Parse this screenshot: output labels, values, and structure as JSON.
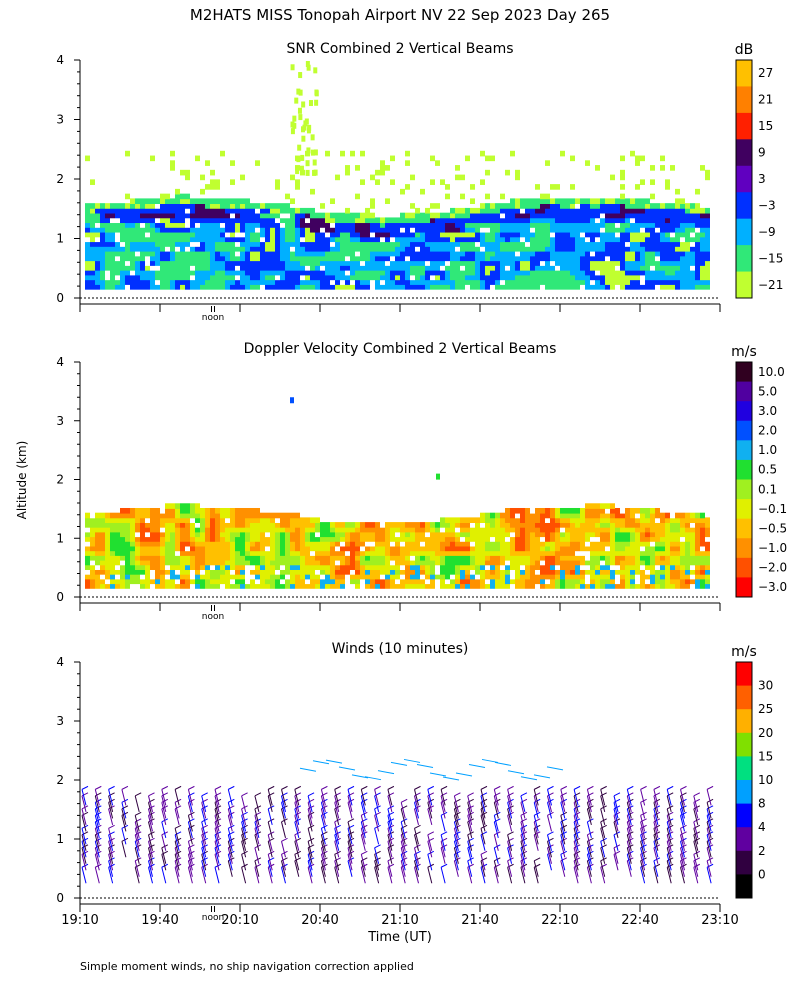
{
  "page_title": "M2HATS MISS Tonopah Airport NV  22 Sep 2023 Day 265",
  "y_label": "Altitude (km)",
  "x_label": "Time (UT)",
  "footnote": "Simple moment winds, no ship navigation correction applied",
  "noon_label": "noon",
  "x_ticks": [
    "19:10",
    "19:40",
    "20:10",
    "20:40",
    "21:10",
    "21:40",
    "22:10",
    "22:40",
    "23:10"
  ],
  "chart_data": [
    {
      "type": "heatmap",
      "title": "SNR Combined 2 Vertical Beams",
      "colorbar_unit": "dB",
      "colorbar_labels": [
        "27",
        "21",
        "15",
        "9",
        "3",
        "−3",
        "−9",
        "−15",
        "−21"
      ],
      "colorbar_colors": [
        "#ffc000",
        "#ff8000",
        "#ff2000",
        "#400060",
        "#6000c0",
        "#0030ff",
        "#00b0ff",
        "#30e878",
        "#c0ff30"
      ],
      "y_ticks": [
        "0",
        "1",
        "2",
        "3",
        "4"
      ],
      "ylim": [
        0,
        4
      ],
      "x_range": [
        "19:10",
        "23:10"
      ],
      "grid": false
    },
    {
      "type": "heatmap",
      "title": "Doppler Velocity Combined 2 Vertical Beams",
      "colorbar_unit": "m/s",
      "colorbar_labels": [
        "10.0",
        "5.0",
        "3.0",
        "2.0",
        "1.0",
        "0.5",
        "0.1",
        "−0.1",
        "−0.5",
        "−1.0",
        "−2.0",
        "−3.0"
      ],
      "colorbar_colors": [
        "#300020",
        "#5000a0",
        "#2000e0",
        "#0050ff",
        "#10b0f0",
        "#20e030",
        "#a0f020",
        "#e0f000",
        "#ffc000",
        "#ff9000",
        "#ff5000",
        "#ff0000"
      ],
      "y_ticks": [
        "0",
        "1",
        "2",
        "3",
        "4"
      ],
      "ylim": [
        0,
        4
      ],
      "x_range": [
        "19:10",
        "23:10"
      ],
      "grid": false
    },
    {
      "type": "scatter",
      "title": "Winds (10 minutes)",
      "colorbar_unit": "m/s",
      "colorbar_labels": [
        "30",
        "25",
        "20",
        "15",
        "10",
        "8",
        "4",
        "2",
        "0"
      ],
      "colorbar_colors": [
        "#ff0000",
        "#ff6000",
        "#ffb000",
        "#80e000",
        "#00e080",
        "#00a0ff",
        "#0000ff",
        "#6000a0",
        "#300040",
        "#000000"
      ],
      "y_ticks": [
        "0",
        "1",
        "2",
        "3",
        "4"
      ],
      "ylim": [
        0,
        4
      ],
      "x_range": [
        "19:10",
        "23:10"
      ],
      "grid": false
    }
  ]
}
